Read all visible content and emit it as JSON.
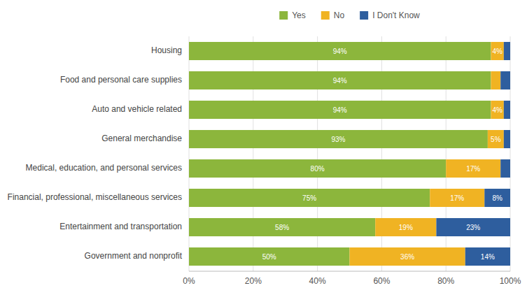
{
  "chart_data": {
    "type": "bar",
    "orientation": "horizontal",
    "stacked": true,
    "data_labels": true,
    "grid": true,
    "legend": "top",
    "categories": [
      "Housing",
      "Food and personal care supplies",
      "Auto and vehicle related",
      "General merchandise",
      "Medical, education, and personal services",
      "Financial, professional, miscellaneous services",
      "Entertainment and transportation",
      "Government and nonprofit"
    ],
    "series": [
      {
        "name": "Yes",
        "color": "#8CB63C",
        "values": [
          94,
          94,
          94,
          93,
          80,
          75,
          58,
          50
        ],
        "value_labels": [
          "94%",
          "94%",
          "94%",
          "93%",
          "80%",
          "75%",
          "58%",
          "50%"
        ]
      },
      {
        "name": "No",
        "color": "#F0B323",
        "values": [
          4,
          3,
          4,
          5,
          17,
          17,
          19,
          36
        ],
        "value_labels": [
          "4%",
          null,
          "4%",
          "5%",
          "17%",
          "17%",
          "19%",
          "36%"
        ]
      },
      {
        "name": "I Don't Know",
        "color": "#2E5E9E",
        "values": [
          2,
          3,
          2,
          2,
          3,
          8,
          23,
          14
        ],
        "value_labels": [
          null,
          null,
          null,
          null,
          null,
          "8%",
          "23%",
          "14%"
        ]
      }
    ],
    "xlim": [
      0,
      100
    ],
    "xticks": [
      {
        "value": 0,
        "label": "0%"
      },
      {
        "value": 20,
        "label": "20%"
      },
      {
        "value": 40,
        "label": "40%"
      },
      {
        "value": 60,
        "label": "60%"
      },
      {
        "value": 80,
        "label": "80%"
      },
      {
        "value": 100,
        "label": "100%"
      }
    ]
  }
}
